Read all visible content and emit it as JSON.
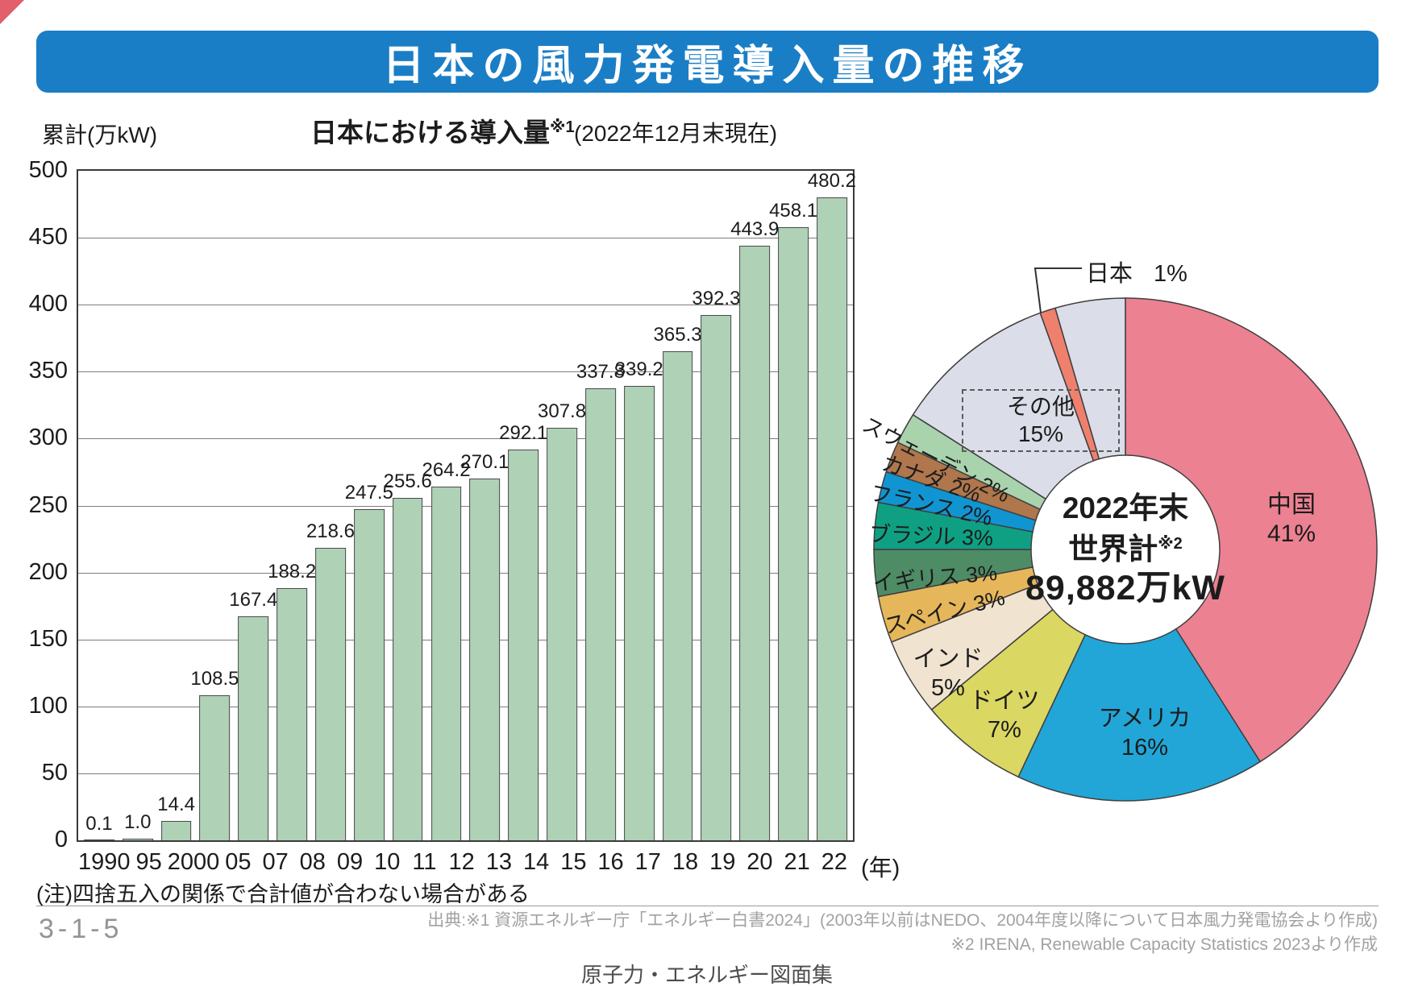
{
  "banner": {
    "title": "日本の風力発電導入量の推移"
  },
  "chart_data": [
    {
      "type": "bar",
      "title": "日本における導入量",
      "title_note": "※1",
      "unit_label": "累計(万kW)",
      "date_note": "(2022年12月末現在)",
      "x_suffix": "(年)",
      "ylim": [
        0,
        500
      ],
      "ytick_step": 50,
      "categories": [
        "1990",
        "95",
        "2000",
        "05",
        "07",
        "08",
        "09",
        "10",
        "11",
        "12",
        "13",
        "14",
        "15",
        "16",
        "17",
        "18",
        "19",
        "20",
        "21",
        "22"
      ],
      "values": [
        0.1,
        1.0,
        14.4,
        108.5,
        167.4,
        188.2,
        218.6,
        247.5,
        255.6,
        264.2,
        270.1,
        292.1,
        307.8,
        337.8,
        339.2,
        365.3,
        392.3,
        443.9,
        458.1,
        480.2
      ],
      "value_labels": [
        "0.1",
        "1.0",
        "14.4",
        "108.5",
        "167.4",
        "188.2",
        "218.6",
        "247.5",
        "255.6",
        "264.2",
        "270.1",
        "292.1",
        "307.8",
        "337.8",
        "339.2",
        "365.3",
        "392.3",
        "443.9",
        "458.1",
        "480.2"
      ],
      "bar_color": "#afd1b6"
    },
    {
      "type": "pie",
      "center": {
        "line1": "2022年末",
        "line2": "世界計",
        "line2_note": "※2",
        "line3": "89,882万kW"
      },
      "callout": {
        "label": "日本",
        "value": "1%"
      },
      "others_box": {
        "label": "その他",
        "value": "15%"
      },
      "segments": [
        {
          "label": "中国",
          "pct": 41,
          "color": "#ec8192"
        },
        {
          "label": "アメリカ",
          "pct": 16,
          "color": "#22a6d8"
        },
        {
          "label": "ドイツ",
          "pct": 7,
          "color": "#dbd763"
        },
        {
          "label": "インド",
          "pct": 5,
          "color": "#f0e3d0"
        },
        {
          "label": "スペイン",
          "pct": 3,
          "color": "#e6b75a"
        },
        {
          "label": "イギリス",
          "pct": 3,
          "color": "#4e8c66"
        },
        {
          "label": "ブラジル",
          "pct": 3,
          "color": "#0fa084"
        },
        {
          "label": "フランス",
          "pct": 2,
          "color": "#1095d2"
        },
        {
          "label": "カナダ",
          "pct": 2,
          "color": "#b0764c"
        },
        {
          "label": "スウェーデン",
          "pct": 2,
          "color": "#a9d3ad"
        },
        {
          "label": "その他",
          "pct": 10.5,
          "color": "#dbdde8"
        },
        {
          "label": "日本",
          "pct": 1,
          "color": "#f0806e"
        },
        {
          "label": "その他",
          "pct": 4.5,
          "color": "#dbdde8"
        }
      ],
      "slice_labels": [
        {
          "text": "中国",
          "value": "41%"
        },
        {
          "text": "アメリカ",
          "value": "16%"
        },
        {
          "text": "ドイツ",
          "value": "7%"
        },
        {
          "text": "インド",
          "value": "5%"
        },
        {
          "text": "スペイン",
          "value": "3%"
        },
        {
          "text": "イギリス",
          "value": "3%"
        },
        {
          "text": "ブラジル",
          "value": "3%"
        },
        {
          "text": "フランス",
          "value": "2%"
        },
        {
          "text": "カナダ",
          "value": "2%"
        },
        {
          "text": "スウェーデン",
          "value": "2%"
        }
      ]
    }
  ],
  "footer": {
    "note": "(注)四捨五入の関係で合計値が合わない場合がある",
    "page_number": "3-1-5",
    "source_line1": "出典:※1 資源エネルギー庁「エネルギー白書2024」(2003年以前はNEDO、2004年度以降について日本風力発電協会より作成)",
    "source_line2": "※2 IRENA, Renewable Capacity Statistics 2023より作成",
    "book_title": "原子力・エネルギー図面集"
  }
}
